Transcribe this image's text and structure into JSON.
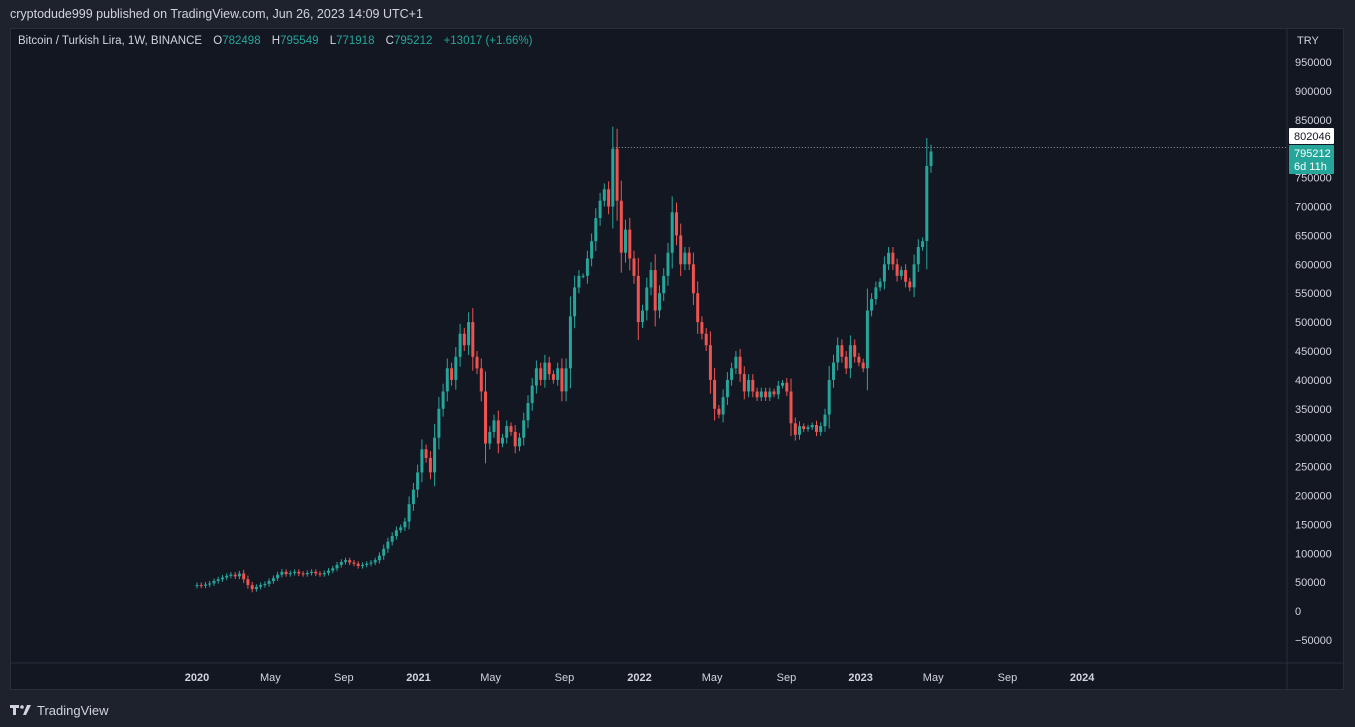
{
  "header": {
    "published_text": "cryptodude999 published on TradingView.com, Jun 26, 2023 14:09 UTC+1"
  },
  "legend": {
    "symbol": "Bitcoin / Turkish Lira, 1W, BINANCE",
    "open_label": "O",
    "open": "782498",
    "high_label": "H",
    "high": "795549",
    "low_label": "L",
    "low": "771918",
    "close_label": "C",
    "close": "795212",
    "change": "+13017 (+1.66%)"
  },
  "price_axis": {
    "currency": "TRY",
    "marker_line_value": "802046",
    "last_price": "795212",
    "countdown": "6d 11h"
  },
  "footer": {
    "brand": "TradingView"
  },
  "colors": {
    "up": "#26a69a",
    "down": "#ef5350",
    "background": "#131722",
    "text": "#d1d4dc",
    "accent": "#26a69a"
  },
  "chart_data": {
    "type": "candlestick",
    "y_ticks": [
      950000,
      900000,
      850000,
      800000,
      750000,
      700000,
      650000,
      600000,
      550000,
      500000,
      450000,
      400000,
      350000,
      300000,
      250000,
      200000,
      150000,
      100000,
      50000,
      0,
      -50000
    ],
    "ylim": [
      -80000,
      1005000
    ],
    "x_tick_labels": [
      {
        "label": "2020",
        "bold": true,
        "week": 0
      },
      {
        "label": "May",
        "bold": false,
        "week": 17.3
      },
      {
        "label": "Sep",
        "bold": false,
        "week": 34.6
      },
      {
        "label": "2021",
        "bold": true,
        "week": 52.2
      },
      {
        "label": "May",
        "bold": false,
        "week": 69.2
      },
      {
        "label": "Sep",
        "bold": false,
        "week": 86.6
      },
      {
        "label": "2022",
        "bold": true,
        "week": 104.3
      },
      {
        "label": "May",
        "bold": false,
        "week": 121.4
      },
      {
        "label": "Sep",
        "bold": false,
        "week": 138.9
      },
      {
        "label": "2023",
        "bold": true,
        "week": 156.4
      },
      {
        "label": "May",
        "bold": false,
        "week": 173.5
      },
      {
        "label": "Sep",
        "bold": false,
        "week": 191.0
      },
      {
        "label": "2024",
        "bold": true,
        "week": 208.6
      }
    ],
    "marker_line": 802046,
    "closes": [
      45000,
      44000,
      46000,
      48000,
      52000,
      55000,
      58000,
      61000,
      63000,
      60000,
      65000,
      55000,
      45000,
      38000,
      42000,
      45000,
      47000,
      52000,
      57000,
      63000,
      68000,
      64000,
      66000,
      68000,
      65000,
      64000,
      66000,
      68000,
      65000,
      64000,
      66000,
      70000,
      74000,
      80000,
      85000,
      88000,
      84000,
      82000,
      78000,
      80000,
      82000,
      84000,
      88000,
      96000,
      108000,
      120000,
      130000,
      140000,
      145000,
      155000,
      185000,
      210000,
      240000,
      280000,
      265000,
      240000,
      300000,
      350000,
      380000,
      420000,
      400000,
      440000,
      480000,
      460000,
      500000,
      440000,
      420000,
      380000,
      290000,
      310000,
      330000,
      290000,
      300000,
      320000,
      310000,
      285000,
      300000,
      330000,
      360000,
      390000,
      420000,
      400000,
      430000,
      410000,
      400000,
      420000,
      380000,
      420000,
      510000,
      560000,
      580000,
      580000,
      610000,
      640000,
      680000,
      710000,
      730000,
      700000,
      800000,
      710000,
      620000,
      660000,
      610000,
      580000,
      500000,
      520000,
      560000,
      590000,
      520000,
      550000,
      580000,
      620000,
      690000,
      650000,
      600000,
      620000,
      600000,
      550000,
      500000,
      480000,
      460000,
      400000,
      350000,
      340000,
      370000,
      400000,
      420000,
      440000,
      410000,
      380000,
      400000,
      380000,
      370000,
      380000,
      370000,
      380000,
      375000,
      390000,
      395000,
      380000,
      325000,
      305000,
      320000,
      315000,
      318000,
      322000,
      310000,
      320000,
      340000,
      400000,
      430000,
      460000,
      440000,
      420000,
      460000,
      440000,
      430000,
      420000,
      520000,
      540000,
      560000,
      570000,
      600000,
      620000,
      600000,
      580000,
      590000,
      570000,
      560000,
      600000,
      630000,
      640000,
      770000,
      795212
    ]
  }
}
